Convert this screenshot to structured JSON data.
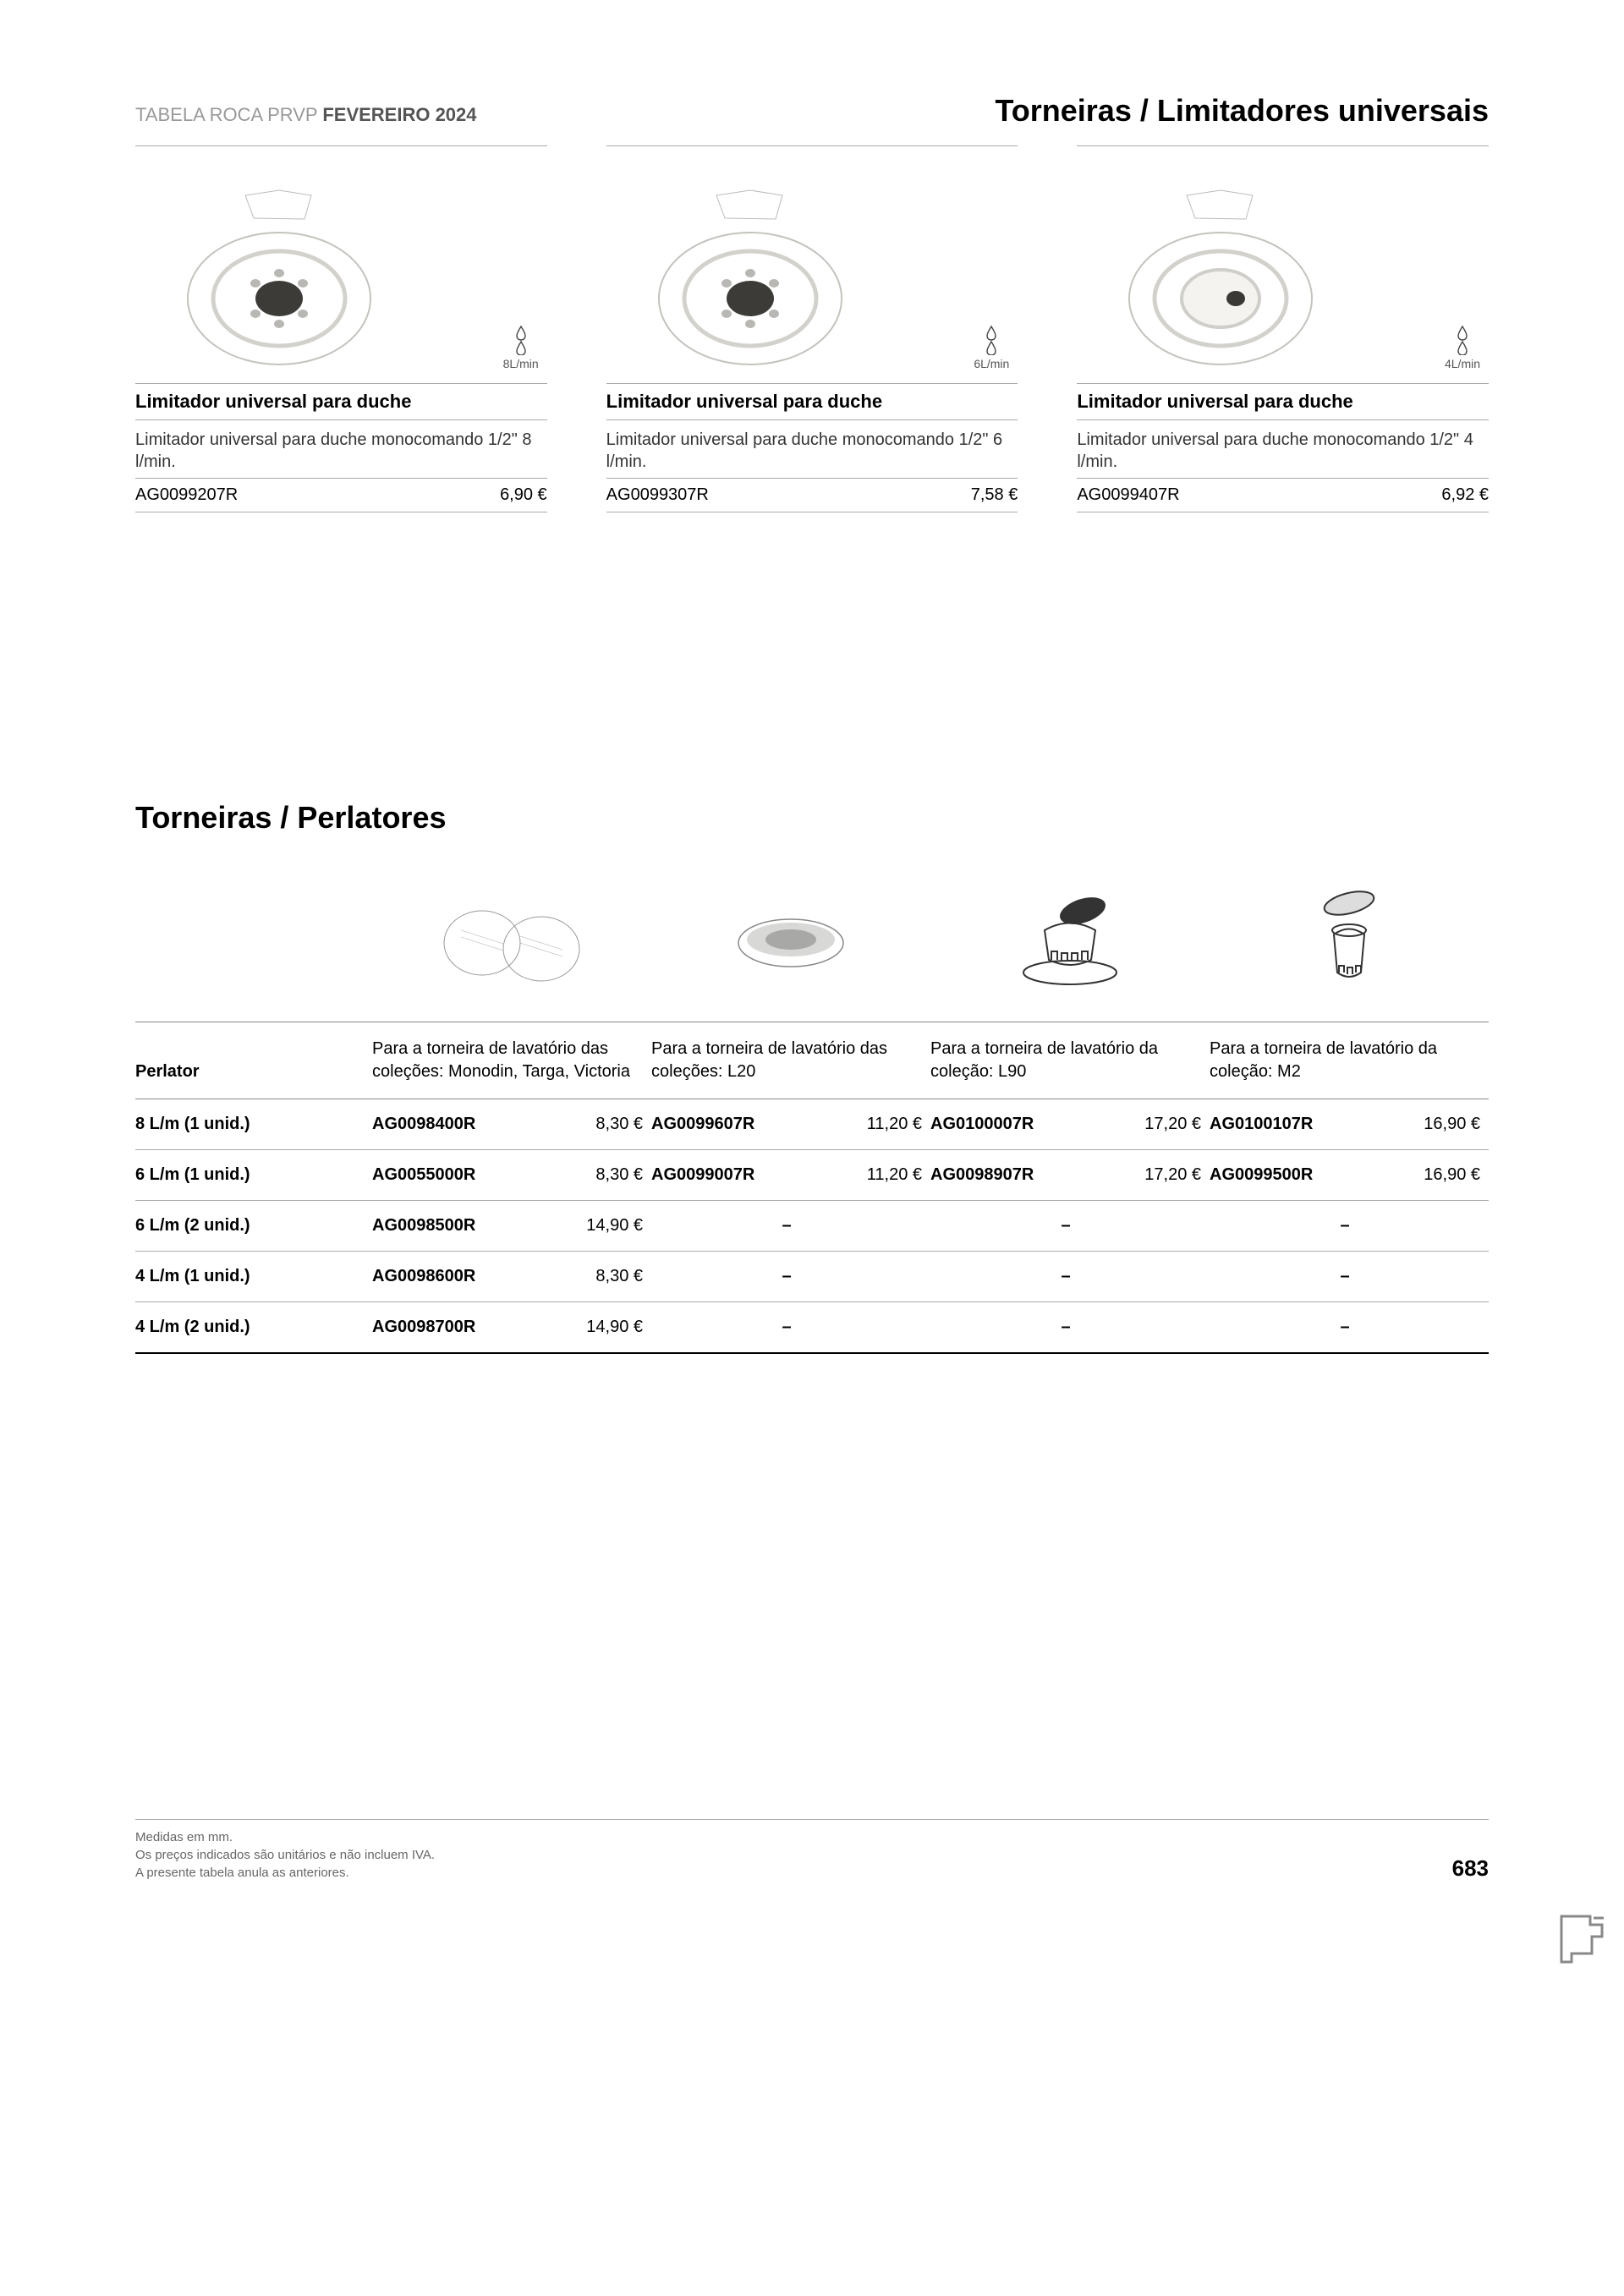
{
  "header": {
    "prefix": "TABELA ROCA PRVP ",
    "period": "FEVEREIRO 2024",
    "category": "Torneiras / Limitadores universais"
  },
  "products": [
    {
      "flow_label": "8L/min",
      "title": "Limitador universal para duche",
      "desc": "Limitador universal para duche monocomando 1/2\" 8 l/min.",
      "ref": "AG0099207R",
      "price": "6,90 €"
    },
    {
      "flow_label": "6L/min",
      "title": "Limitador universal para duche",
      "desc": "Limitador universal para duche monocomando 1/2\" 6 l/min.",
      "ref": "AG0099307R",
      "price": "7,58 €"
    },
    {
      "flow_label": "4L/min",
      "title": "Limitador universal para duche",
      "desc": "Limitador universal para duche monocomando 1/2\" 4 l/min.",
      "ref": "AG0099407R",
      "price": "6,92 €"
    }
  ],
  "section2_title": "Torneiras / Perlatores",
  "table": {
    "row_header_label": "Perlator",
    "col_headers": [
      "Para a torneira de lavatório das coleções: Monodin, Targa, Victoria",
      "Para a torneira de lavatório das coleções: L20",
      "Para a torneira de lavatório da coleção: L90",
      "Para a torneira de lavatório da coleção: M2"
    ],
    "rows": [
      {
        "label": "8 L/m (1 unid.)",
        "cells": [
          {
            "ref": "AG0098400R",
            "price": "8,30 €"
          },
          {
            "ref": "AG0099607R",
            "price": "11,20 €"
          },
          {
            "ref": "AG0100007R",
            "price": "17,20 €"
          },
          {
            "ref": "AG0100107R",
            "price": "16,90 €"
          }
        ]
      },
      {
        "label": "6 L/m (1 unid.)",
        "cells": [
          {
            "ref": "AG0055000R",
            "price": "8,30 €"
          },
          {
            "ref": "AG0099007R",
            "price": "11,20 €"
          },
          {
            "ref": "AG0098907R",
            "price": "17,20 €"
          },
          {
            "ref": "AG0099500R",
            "price": "16,90 €"
          }
        ]
      },
      {
        "label": "6 L/m (2 unid.)",
        "cells": [
          {
            "ref": "AG0098500R",
            "price": "14,90 €"
          },
          {
            "dash": true
          },
          {
            "dash": true
          },
          {
            "dash": true
          }
        ]
      },
      {
        "label": "4 L/m (1 unid.)",
        "cells": [
          {
            "ref": "AG0098600R",
            "price": "8,30 €"
          },
          {
            "dash": true
          },
          {
            "dash": true
          },
          {
            "dash": true
          }
        ]
      },
      {
        "label": "4 L/m (2 unid.)",
        "cells": [
          {
            "ref": "AG0098700R",
            "price": "14,90 €"
          },
          {
            "dash": true
          },
          {
            "dash": true
          },
          {
            "dash": true
          }
        ]
      }
    ]
  },
  "footer": {
    "line1": "Medidas em mm.",
    "line2": "Os preços indicados são unitários e não incluem IVA.",
    "line3": "A presente tabela anula as anteriores.",
    "page_num": "683"
  },
  "style": {
    "divider_color": "#aaa",
    "text_color": "#333",
    "muted_color": "#999"
  }
}
